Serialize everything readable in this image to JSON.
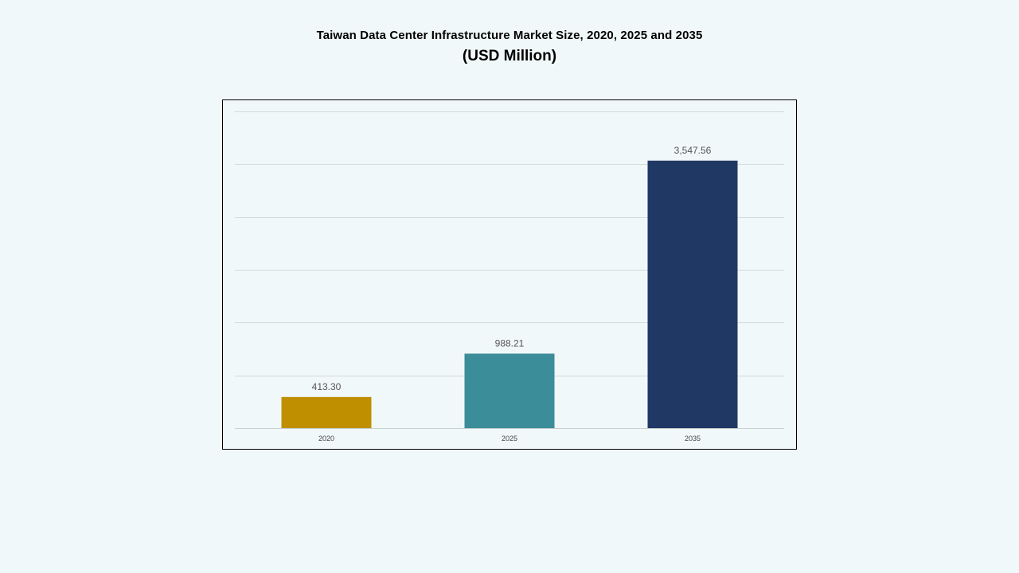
{
  "chart_data": {
    "type": "bar",
    "title": "Taiwan Data Center Infrastructure  Market Size, 2020, 2025 and 2035",
    "subtitle": "(USD Million)",
    "categories": [
      "2020",
      "2025",
      "2035"
    ],
    "values": [
      413.3,
      988.21,
      3547.56
    ],
    "value_labels": [
      "413.30",
      "988.21",
      "3,547.56"
    ],
    "bar_colors": [
      "#bf8f00",
      "#3b8d99",
      "#203864"
    ],
    "xlabel": "",
    "ylabel": "",
    "ylim": [
      0,
      4200
    ],
    "y_gridline_step": 700,
    "grid": true,
    "legend": "none"
  }
}
